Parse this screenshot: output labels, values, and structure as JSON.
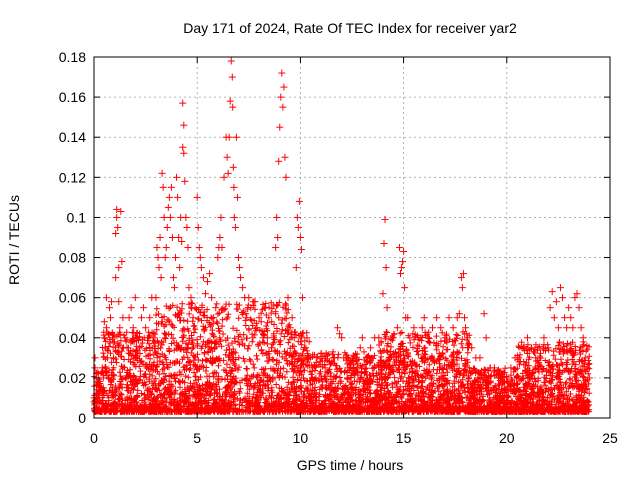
{
  "chart_data": {
    "type": "scatter",
    "title": "Day 171 of 2024, Rate Of TEC Index for receiver yar2",
    "xlabel": "GPS time / hours",
    "ylabel": "ROTI / TECUs",
    "xlim": [
      0,
      25
    ],
    "ylim": [
      0,
      0.18
    ],
    "x_ticks": [
      0,
      5,
      10,
      15,
      20,
      25
    ],
    "x_tick_labels": [
      "0",
      "5",
      "10",
      "15",
      "20",
      "25"
    ],
    "y_ticks": [
      0,
      0.02,
      0.04,
      0.06,
      0.08,
      0.1,
      0.12,
      0.14,
      0.16,
      0.18
    ],
    "y_tick_labels": [
      "0",
      "0.02",
      "0.04",
      "0.06",
      "0.08",
      "0.1",
      "0.12",
      "0.14",
      "0.16",
      "0.18"
    ],
    "grid": true,
    "marker": "+",
    "color": "#ff0000",
    "series": [
      {
        "values": [
          [
            0.0,
            0.01
          ],
          [
            0.0,
            0.008
          ],
          [
            0.05,
            0.03
          ],
          [
            0.05,
            0.025
          ],
          [
            0.1,
            0.012
          ],
          [
            0.1,
            0.009
          ],
          [
            0.1,
            0.02
          ],
          [
            0.15,
            0.005
          ],
          [
            0.4,
            0.025
          ],
          [
            0.45,
            0.02
          ],
          [
            0.45,
            0.015
          ],
          [
            0.5,
            0.04
          ],
          [
            0.5,
            0.048
          ],
          [
            0.55,
            0.035
          ],
          [
            0.6,
            0.045
          ],
          [
            0.6,
            0.06
          ],
          [
            0.65,
            0.03
          ],
          [
            0.7,
            0.02
          ],
          [
            0.75,
            0.055
          ],
          [
            0.8,
            0.05
          ],
          [
            0.85,
            0.058
          ],
          [
            0.9,
            0.04
          ],
          [
            0.95,
            0.03
          ],
          [
            1.05,
            0.07
          ],
          [
            1.05,
            0.092
          ],
          [
            1.1,
            0.1
          ],
          [
            1.1,
            0.104
          ],
          [
            1.15,
            0.095
          ],
          [
            1.2,
            0.075
          ],
          [
            1.2,
            0.058
          ],
          [
            1.25,
            0.045
          ],
          [
            1.3,
            0.103
          ],
          [
            1.35,
            0.078
          ],
          [
            1.4,
            0.05
          ],
          [
            1.5,
            0.04
          ],
          [
            1.6,
            0.035
          ],
          [
            1.7,
            0.05
          ],
          [
            1.8,
            0.055
          ],
          [
            1.9,
            0.045
          ],
          [
            2.0,
            0.06
          ],
          [
            2.1,
            0.04
          ],
          [
            2.2,
            0.035
          ],
          [
            2.3,
            0.05
          ],
          [
            2.4,
            0.055
          ],
          [
            2.5,
            0.045
          ],
          [
            2.6,
            0.04
          ],
          [
            2.7,
            0.05
          ],
          [
            2.8,
            0.06
          ],
          [
            2.9,
            0.04
          ],
          [
            3.0,
            0.06
          ],
          [
            3.05,
            0.085
          ],
          [
            3.1,
            0.08
          ],
          [
            3.15,
            0.075
          ],
          [
            3.2,
            0.09
          ],
          [
            3.25,
            0.07
          ],
          [
            3.3,
            0.122
          ],
          [
            3.35,
            0.115
          ],
          [
            3.4,
            0.1
          ],
          [
            3.45,
            0.08
          ],
          [
            3.5,
            0.085
          ],
          [
            3.55,
            0.095
          ],
          [
            3.6,
            0.105
          ],
          [
            3.65,
            0.11
          ],
          [
            3.7,
            0.1
          ],
          [
            3.75,
            0.115
          ],
          [
            3.8,
            0.09
          ],
          [
            3.85,
            0.07
          ],
          [
            3.9,
            0.065
          ],
          [
            3.95,
            0.08
          ],
          [
            4.0,
            0.12
          ],
          [
            4.05,
            0.11
          ],
          [
            4.1,
            0.09
          ],
          [
            4.15,
            0.075
          ],
          [
            4.2,
            0.1
          ],
          [
            4.25,
            0.088
          ],
          [
            4.3,
            0.135
          ],
          [
            4.3,
            0.157
          ],
          [
            4.35,
            0.146
          ],
          [
            4.35,
            0.132
          ],
          [
            4.4,
            0.118
          ],
          [
            4.45,
            0.1
          ],
          [
            4.5,
            0.095
          ],
          [
            4.55,
            0.085
          ],
          [
            4.6,
            0.065
          ],
          [
            4.7,
            0.06
          ],
          [
            4.8,
            0.05
          ],
          [
            4.9,
            0.055
          ],
          [
            5.0,
            0.11
          ],
          [
            5.05,
            0.095
          ],
          [
            5.1,
            0.085
          ],
          [
            5.15,
            0.08
          ],
          [
            5.2,
            0.075
          ],
          [
            5.3,
            0.07
          ],
          [
            5.4,
            0.062
          ],
          [
            5.5,
            0.068
          ],
          [
            5.6,
            0.072
          ],
          [
            5.7,
            0.06
          ],
          [
            5.8,
            0.05
          ],
          [
            5.9,
            0.055
          ],
          [
            6.0,
            0.08
          ],
          [
            6.05,
            0.085
          ],
          [
            6.1,
            0.09
          ],
          [
            6.15,
            0.1
          ],
          [
            6.2,
            0.085
          ],
          [
            6.3,
            0.12
          ],
          [
            6.4,
            0.14
          ],
          [
            6.45,
            0.13
          ],
          [
            6.5,
            0.122
          ],
          [
            6.55,
            0.14
          ],
          [
            6.6,
            0.158
          ],
          [
            6.65,
            0.178
          ],
          [
            6.7,
            0.17
          ],
          [
            6.72,
            0.155
          ],
          [
            6.75,
            0.125
          ],
          [
            6.78,
            0.115
          ],
          [
            6.8,
            0.1
          ],
          [
            6.85,
            0.095
          ],
          [
            6.9,
            0.14
          ],
          [
            6.95,
            0.11
          ],
          [
            7.0,
            0.08
          ],
          [
            7.05,
            0.075
          ],
          [
            7.1,
            0.07
          ],
          [
            7.2,
            0.065
          ],
          [
            7.3,
            0.06
          ],
          [
            7.4,
            0.05
          ],
          [
            7.5,
            0.06
          ],
          [
            7.6,
            0.055
          ],
          [
            7.7,
            0.04
          ],
          [
            7.8,
            0.058
          ],
          [
            7.9,
            0.045
          ],
          [
            8.0,
            0.05
          ],
          [
            8.1,
            0.048
          ],
          [
            8.2,
            0.04
          ],
          [
            8.3,
            0.055
          ],
          [
            8.4,
            0.04
          ],
          [
            8.5,
            0.03
          ],
          [
            8.6,
            0.035
          ],
          [
            8.7,
            0.04
          ],
          [
            8.8,
            0.085
          ],
          [
            8.85,
            0.1
          ],
          [
            8.9,
            0.09
          ],
          [
            8.95,
            0.128
          ],
          [
            9.0,
            0.145
          ],
          [
            9.05,
            0.16
          ],
          [
            9.1,
            0.172
          ],
          [
            9.15,
            0.155
          ],
          [
            9.2,
            0.165
          ],
          [
            9.25,
            0.13
          ],
          [
            9.3,
            0.12
          ],
          [
            9.4,
            0.06
          ],
          [
            9.5,
            0.045
          ],
          [
            9.6,
            0.05
          ],
          [
            9.7,
            0.04
          ],
          [
            9.8,
            0.075
          ],
          [
            9.85,
            0.1
          ],
          [
            9.9,
            0.095
          ],
          [
            9.95,
            0.108
          ],
          [
            10.0,
            0.09
          ],
          [
            10.05,
            0.084
          ],
          [
            10.1,
            0.06
          ],
          [
            10.2,
            0.035
          ],
          [
            10.4,
            0.03
          ],
          [
            10.6,
            0.025
          ],
          [
            10.8,
            0.03
          ],
          [
            11.0,
            0.032
          ],
          [
            11.2,
            0.025
          ],
          [
            11.4,
            0.028
          ],
          [
            11.6,
            0.03
          ],
          [
            11.8,
            0.045
          ],
          [
            11.9,
            0.042
          ],
          [
            12.0,
            0.04
          ],
          [
            12.1,
            0.03
          ],
          [
            12.3,
            0.025
          ],
          [
            12.5,
            0.028
          ],
          [
            12.7,
            0.03
          ],
          [
            12.9,
            0.035
          ],
          [
            13.0,
            0.04
          ],
          [
            13.2,
            0.03
          ],
          [
            13.4,
            0.035
          ],
          [
            13.6,
            0.04
          ],
          [
            13.8,
            0.04
          ],
          [
            14.0,
            0.062
          ],
          [
            14.05,
            0.087
          ],
          [
            14.1,
            0.099
          ],
          [
            14.15,
            0.075
          ],
          [
            14.2,
            0.055
          ],
          [
            14.3,
            0.03
          ],
          [
            14.5,
            0.04
          ],
          [
            14.7,
            0.045
          ],
          [
            14.8,
            0.085
          ],
          [
            14.85,
            0.072
          ],
          [
            14.9,
            0.075
          ],
          [
            14.95,
            0.078
          ],
          [
            15.0,
            0.083
          ],
          [
            15.05,
            0.065
          ],
          [
            15.1,
            0.05
          ],
          [
            15.2,
            0.05
          ],
          [
            15.3,
            0.04
          ],
          [
            15.5,
            0.045
          ],
          [
            15.7,
            0.04
          ],
          [
            15.9,
            0.045
          ],
          [
            16.0,
            0.05
          ],
          [
            16.2,
            0.04
          ],
          [
            16.4,
            0.045
          ],
          [
            16.6,
            0.05
          ],
          [
            16.8,
            0.045
          ],
          [
            17.0,
            0.04
          ],
          [
            17.2,
            0.05
          ],
          [
            17.4,
            0.045
          ],
          [
            17.6,
            0.05
          ],
          [
            17.7,
            0.052
          ],
          [
            17.8,
            0.07
          ],
          [
            17.85,
            0.065
          ],
          [
            17.9,
            0.072
          ],
          [
            17.95,
            0.05
          ],
          [
            18.0,
            0.045
          ],
          [
            18.1,
            0.04
          ],
          [
            18.3,
            0.035
          ],
          [
            18.5,
            0.03
          ],
          [
            18.7,
            0.03
          ],
          [
            18.9,
            0.052
          ],
          [
            19.0,
            0.04
          ],
          [
            19.2,
            0.025
          ],
          [
            19.4,
            0.025
          ],
          [
            19.6,
            0.02
          ],
          [
            19.8,
            0.02
          ],
          [
            20.0,
            0.02
          ],
          [
            20.2,
            0.025
          ],
          [
            20.4,
            0.03
          ],
          [
            20.6,
            0.028
          ],
          [
            20.8,
            0.035
          ],
          [
            21.0,
            0.04
          ],
          [
            21.2,
            0.035
          ],
          [
            21.4,
            0.03
          ],
          [
            21.6,
            0.03
          ],
          [
            21.8,
            0.04
          ],
          [
            22.0,
            0.035
          ],
          [
            22.1,
            0.055
          ],
          [
            22.2,
            0.063
          ],
          [
            22.3,
            0.05
          ],
          [
            22.4,
            0.058
          ],
          [
            22.5,
            0.045
          ],
          [
            22.6,
            0.065
          ],
          [
            22.7,
            0.06
          ],
          [
            22.8,
            0.05
          ],
          [
            22.9,
            0.045
          ],
          [
            23.0,
            0.055
          ],
          [
            23.1,
            0.05
          ],
          [
            23.2,
            0.045
          ],
          [
            23.3,
            0.06
          ],
          [
            23.4,
            0.062
          ],
          [
            23.5,
            0.055
          ],
          [
            23.6,
            0.045
          ],
          [
            23.7,
            0.04
          ],
          [
            23.8,
            0.03
          ],
          [
            23.9,
            0.025
          ],
          [
            24.0,
            0.02
          ]
        ]
      }
    ]
  }
}
